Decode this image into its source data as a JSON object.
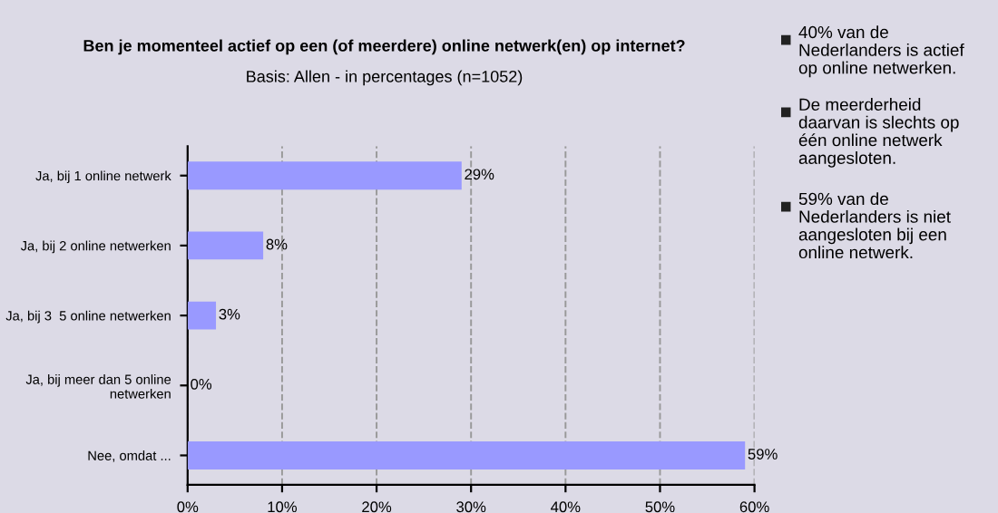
{
  "chart_data": {
    "type": "bar",
    "orientation": "horizontal",
    "title": "Ben je momenteel actief op een (of meerdere) online netwerk(en) op internet?",
    "subtitle": "Basis: Allen - in percentages (n=1052)",
    "categories": [
      "Ja, bij 1 online netwerk",
      "Ja, bij 2 online netwerken",
      "Ja, bij 3  5 online netwerken",
      "Ja, bij meer dan 5 online\nnetwerken",
      "Nee, omdat ..."
    ],
    "values": [
      29,
      8,
      3,
      0,
      59
    ],
    "value_labels": [
      "29%",
      "8%",
      "3%",
      "0%",
      "59%"
    ],
    "color": "#9999ff",
    "xlim": [
      0,
      60
    ],
    "xticks": [
      {
        "value": 0,
        "label": "0%"
      },
      {
        "value": 10,
        "label": "10%"
      },
      {
        "value": 20,
        "label": "20%"
      },
      {
        "value": 30,
        "label": "30%"
      },
      {
        "value": 40,
        "label": "40%"
      },
      {
        "value": 50,
        "label": "50%"
      },
      {
        "value": 60,
        "label": "60%"
      }
    ],
    "grid": "x",
    "legend": false,
    "annotations": [
      "40% van de\nNederlanders is actief\nop online netwerken.",
      "De meerderheid\ndaarvan is slechts op\néén online netwerk\naangesloten.",
      "59% van de\nNederlanders is niet\naangesloten bij een\nonline netwerk."
    ]
  }
}
